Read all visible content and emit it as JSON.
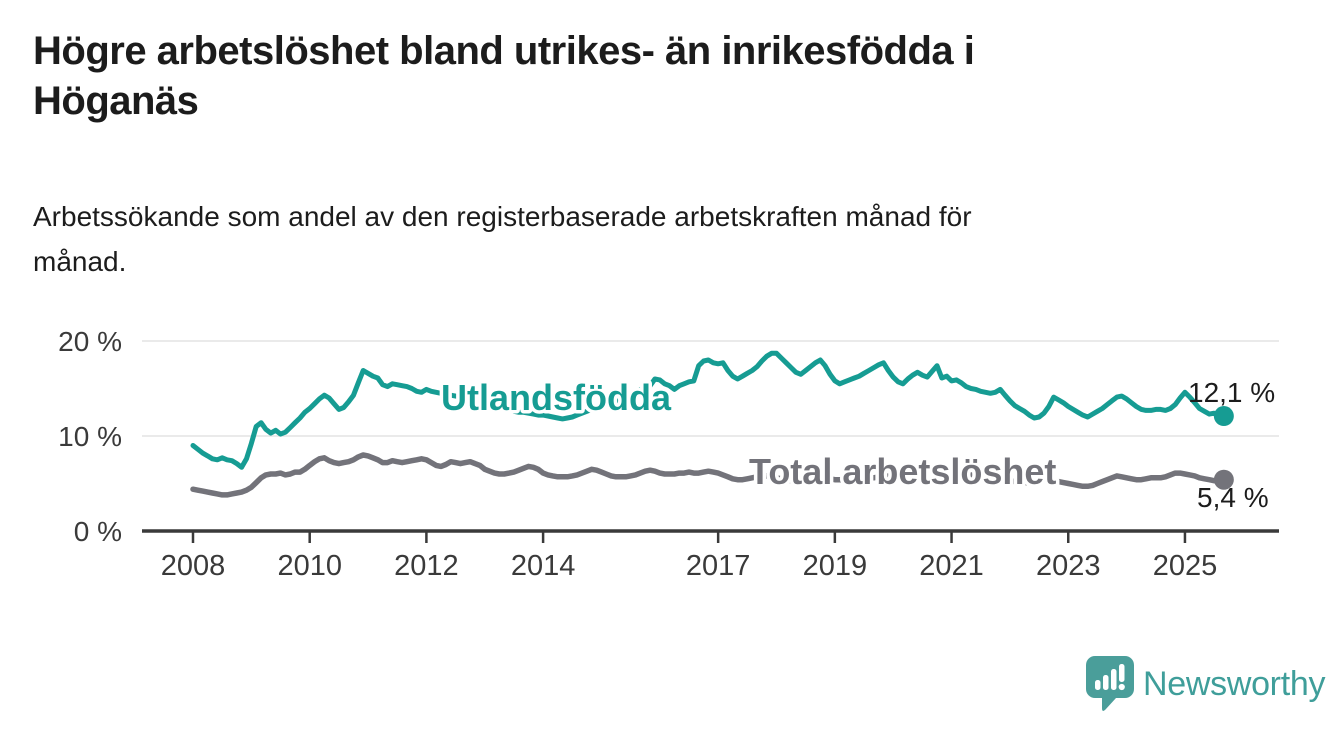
{
  "header": {
    "title_lines": [
      "Högre arbetslöshet bland utrikes- än inrikesfödda i",
      "Höganäs"
    ],
    "subtitle_lines": [
      "Arbetssökande som andel av den registerbaserade arbetskraften månad för",
      "månad."
    ]
  },
  "chart_data": {
    "type": "line",
    "title": "Högre arbetslöshet bland utrikes- än inrikesfödda i Höganäs",
    "subtitle": "Arbetssökande som andel av den registerbaserade arbetskraften månad för månad.",
    "unit": "%",
    "frequency": "monthly",
    "x_start": "2008-01",
    "x_end": "2025-09",
    "grid": "horizontal",
    "legend_position": "inline-labels",
    "ylim": [
      0,
      21
    ],
    "y_ticks": [
      {
        "value": 0,
        "label": "0 %"
      },
      {
        "value": 10,
        "label": "10 %"
      },
      {
        "value": 20,
        "label": "20 %"
      }
    ],
    "x_ticks": [
      {
        "year": 2008,
        "label": "2008"
      },
      {
        "year": 2010,
        "label": "2010"
      },
      {
        "year": 2012,
        "label": "2012"
      },
      {
        "year": 2014,
        "label": "2014"
      },
      {
        "year": 2017,
        "label": "2017"
      },
      {
        "year": 2019,
        "label": "2019"
      },
      {
        "year": 2021,
        "label": "2021"
      },
      {
        "year": 2023,
        "label": "2023"
      },
      {
        "year": 2025,
        "label": "2025"
      }
    ],
    "series": [
      {
        "name": "Utlandsfödda",
        "color": "#169c93",
        "end_value": 12.1,
        "end_label": "12,1 %",
        "values": [
          9.0,
          8.6,
          8.2,
          7.9,
          7.6,
          7.5,
          7.7,
          7.5,
          7.4,
          7.1,
          6.7,
          7.6,
          9.2,
          11.0,
          11.4,
          10.7,
          10.3,
          10.6,
          10.2,
          10.4,
          10.9,
          11.4,
          11.9,
          12.5,
          12.9,
          13.4,
          13.9,
          14.3,
          14.0,
          13.4,
          12.8,
          13.0,
          13.6,
          14.3,
          15.6,
          16.9,
          16.6,
          16.3,
          16.1,
          15.4,
          15.2,
          15.5,
          15.4,
          15.3,
          15.2,
          15.0,
          14.7,
          14.6,
          14.9,
          14.7,
          14.6,
          14.5,
          14.4,
          14.3,
          14.2,
          14.1,
          14.0,
          13.9,
          13.8,
          13.6,
          13.5,
          13.4,
          13.2,
          13.1,
          13.0,
          12.8,
          12.6,
          12.5,
          12.5,
          12.4,
          12.3,
          12.2,
          12.2,
          12.1,
          12.0,
          11.9,
          11.8,
          11.9,
          12.0,
          12.2,
          12.4,
          12.6,
          12.8,
          13.0,
          13.1,
          13.3,
          13.4,
          13.6,
          13.8,
          14.0,
          14.3,
          14.6,
          14.9,
          14.4,
          15.3,
          16.0,
          15.9,
          15.5,
          15.3,
          14.9,
          15.3,
          15.5,
          15.7,
          15.8,
          17.4,
          17.9,
          18.0,
          17.7,
          17.6,
          17.7,
          16.9,
          16.3,
          16.0,
          16.3,
          16.6,
          16.9,
          17.3,
          17.9,
          18.4,
          18.7,
          18.7,
          18.2,
          17.7,
          17.2,
          16.7,
          16.5,
          16.9,
          17.3,
          17.7,
          18.0,
          17.4,
          16.5,
          15.8,
          15.5,
          15.7,
          15.9,
          16.1,
          16.3,
          16.6,
          16.9,
          17.2,
          17.5,
          17.7,
          16.9,
          16.2,
          15.7,
          15.5,
          16.0,
          16.4,
          16.7,
          16.4,
          16.2,
          16.8,
          17.4,
          16.1,
          16.3,
          15.8,
          15.9,
          15.6,
          15.2,
          15.0,
          14.9,
          14.7,
          14.6,
          14.5,
          14.6,
          14.9,
          14.3,
          13.7,
          13.2,
          12.9,
          12.6,
          12.2,
          11.9,
          12.0,
          12.4,
          13.1,
          14.1,
          13.8,
          13.5,
          13.1,
          12.8,
          12.5,
          12.2,
          12.0,
          12.3,
          12.6,
          12.9,
          13.3,
          13.7,
          14.1,
          14.2,
          13.9,
          13.5,
          13.1,
          12.8,
          12.7,
          12.7,
          12.8,
          12.8,
          12.7,
          12.9,
          13.3,
          14.0,
          14.6,
          14.1,
          13.5,
          12.9,
          12.6,
          12.3,
          12.4,
          12.0,
          12.1
        ]
      },
      {
        "name": "Total arbetslöshet",
        "color": "#73737a",
        "end_value": 5.4,
        "end_label": "5,4 %",
        "values": [
          4.4,
          4.3,
          4.2,
          4.1,
          4.0,
          3.9,
          3.8,
          3.8,
          3.9,
          4.0,
          4.1,
          4.3,
          4.6,
          5.1,
          5.6,
          5.9,
          6.0,
          6.0,
          6.1,
          5.9,
          6.0,
          6.2,
          6.2,
          6.5,
          6.9,
          7.3,
          7.6,
          7.7,
          7.4,
          7.2,
          7.1,
          7.2,
          7.3,
          7.5,
          7.8,
          8.0,
          7.9,
          7.7,
          7.5,
          7.2,
          7.2,
          7.4,
          7.3,
          7.2,
          7.3,
          7.4,
          7.5,
          7.6,
          7.5,
          7.2,
          6.9,
          6.8,
          7.0,
          7.3,
          7.2,
          7.1,
          7.2,
          7.3,
          7.1,
          6.9,
          6.5,
          6.3,
          6.1,
          6.0,
          6.0,
          6.1,
          6.2,
          6.4,
          6.6,
          6.8,
          6.7,
          6.5,
          6.1,
          5.9,
          5.8,
          5.7,
          5.7,
          5.7,
          5.8,
          5.9,
          6.1,
          6.3,
          6.5,
          6.4,
          6.2,
          6.0,
          5.8,
          5.7,
          5.7,
          5.7,
          5.8,
          5.9,
          6.1,
          6.3,
          6.4,
          6.3,
          6.1,
          6.0,
          6.0,
          6.0,
          6.1,
          6.1,
          6.2,
          6.1,
          6.1,
          6.2,
          6.3,
          6.2,
          6.1,
          5.9,
          5.7,
          5.5,
          5.4,
          5.4,
          5.5,
          5.6,
          5.7,
          5.8,
          5.8,
          5.7,
          5.6,
          5.5,
          5.4,
          5.3,
          5.3,
          5.3,
          5.4,
          5.5,
          5.5,
          5.6,
          5.6,
          5.5,
          5.4,
          5.4,
          5.3,
          5.3,
          5.4,
          5.4,
          5.5,
          5.6,
          5.6,
          5.7,
          5.7,
          5.8,
          5.9,
          6.0,
          6.2,
          6.5,
          6.7,
          6.8,
          6.8,
          6.7,
          6.6,
          6.5,
          6.4,
          6.4,
          6.3,
          6.2,
          6.1,
          6.0,
          5.9,
          5.8,
          5.7,
          5.6,
          5.5,
          5.4,
          5.4,
          5.3,
          5.3,
          5.2,
          5.2,
          5.1,
          5.1,
          5.1,
          5.2,
          5.3,
          5.5,
          5.4,
          5.2,
          5.1,
          5.0,
          4.9,
          4.8,
          4.7,
          4.7,
          4.8,
          5.0,
          5.2,
          5.4,
          5.6,
          5.8,
          5.7,
          5.6,
          5.5,
          5.4,
          5.4,
          5.5,
          5.6,
          5.6,
          5.6,
          5.7,
          5.9,
          6.1,
          6.1,
          6.0,
          5.9,
          5.8,
          5.6,
          5.5,
          5.4,
          5.3,
          5.3,
          5.4
        ]
      }
    ]
  },
  "footer": {
    "brand": "Newsworthy",
    "brand_color": "#3f9e9a",
    "logo_icon": "speech-bubble-bar-chart-icon"
  }
}
